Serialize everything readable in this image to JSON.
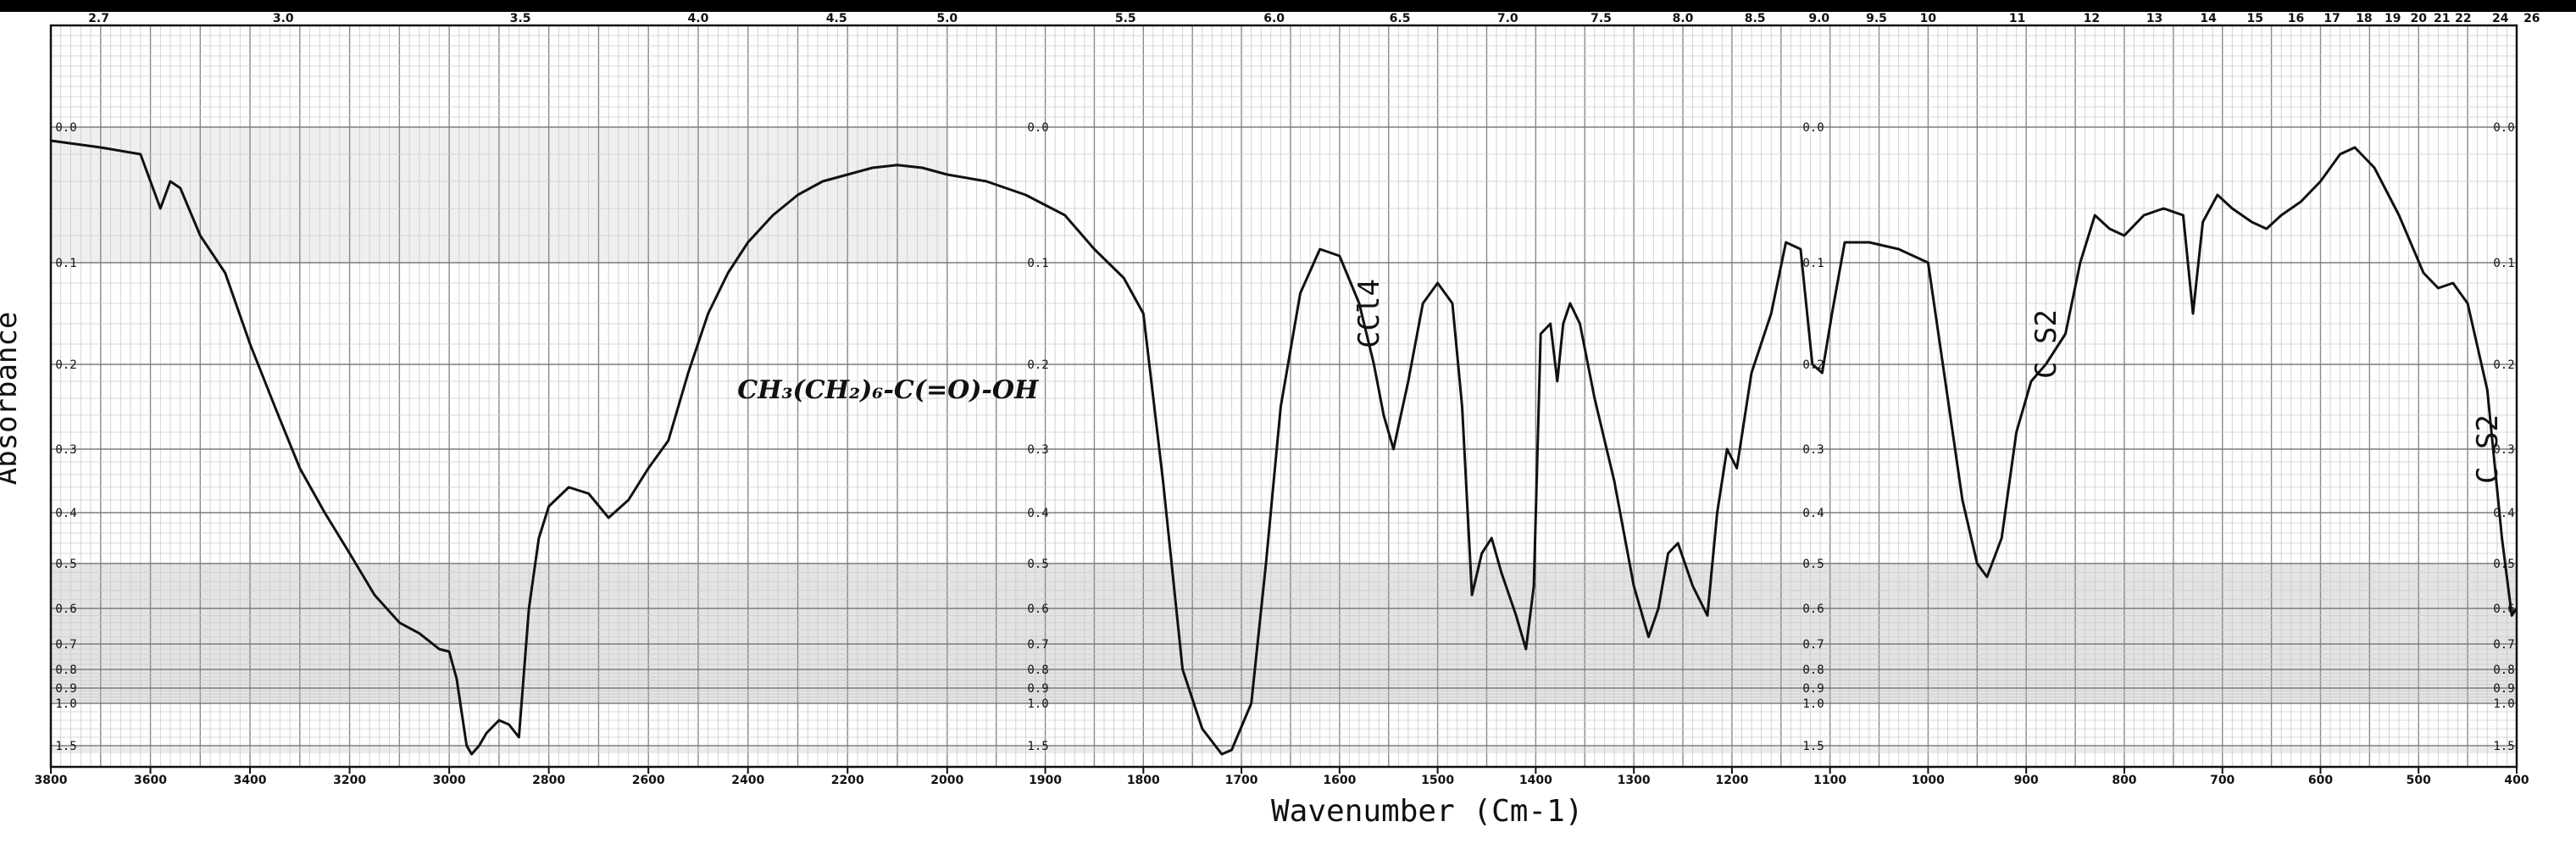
{
  "chart_data": {
    "type": "line",
    "title": "",
    "xlabel": "Wavenumber (Cm-1)",
    "ylabel": "Absorbance",
    "x_reversed": true,
    "x_scale": "piecewise: 3800-2000 and 2000-400 at different spacing",
    "xlim": [
      3800,
      400
    ],
    "y_scale": "absorbance (nonlinear grid)",
    "grid": true,
    "x_ticks": [
      3800,
      3600,
      3400,
      3200,
      3000,
      2800,
      2600,
      2400,
      2200,
      2000,
      1900,
      1800,
      1700,
      1600,
      1500,
      1400,
      1300,
      1200,
      1100,
      1000,
      900,
      800,
      700,
      600,
      500,
      400
    ],
    "x_tick_labels": [
      "3800",
      "3600",
      "3400",
      "3200",
      "3000",
      "2800",
      "2600",
      "2400",
      "2200",
      "2000",
      "1900",
      "1800",
      "1700",
      "1600",
      "1500",
      "1400",
      "1300",
      "1200",
      "1100",
      "1000",
      "900",
      "800",
      "700",
      "600",
      "500",
      "400"
    ],
    "y_tick_labels": [
      "0.0",
      "0.1",
      "0.2",
      "0.3",
      "0.4",
      "0.5",
      "0.6",
      "0.7",
      "0.8",
      "0.9",
      "1.0",
      "1.5"
    ],
    "y_tick_values": [
      0.0,
      0.1,
      0.2,
      0.3,
      0.4,
      0.5,
      0.6,
      0.7,
      0.8,
      0.9,
      1.0,
      1.5
    ],
    "top_axis_label_values": [
      "2.7",
      "3.0",
      "3.5",
      "4.0",
      "4.5",
      "5.0",
      "5.5",
      "6.0",
      "6.5",
      "7.0",
      "7.5",
      "8.0",
      "8.5",
      "9.0",
      "9.5",
      "10",
      "11",
      "12",
      "13",
      "14",
      "15",
      "16",
      "17",
      "18",
      "19",
      "20",
      "21",
      "22",
      "24",
      "26"
    ],
    "annotations": [
      {
        "text": "CH₃(CH₂)₆-C(=O)-OH",
        "kind": "handwritten structural formula",
        "x": 2000,
        "y": 0.22
      },
      {
        "text": "CCl4",
        "kind": "solvent band label",
        "x": 1560,
        "y": 0.15
      },
      {
        "text": "C S2",
        "kind": "solvent band label",
        "x": 870,
        "y": 0.18
      },
      {
        "text": "C S2",
        "kind": "solvent band label",
        "x": 420,
        "y": 0.3
      }
    ],
    "series": [
      {
        "points": [
          [
            3800,
            0.01
          ],
          [
            3700,
            0.015
          ],
          [
            3620,
            0.02
          ],
          [
            3580,
            0.06
          ],
          [
            3560,
            0.04
          ],
          [
            3540,
            0.045
          ],
          [
            3500,
            0.08
          ],
          [
            3450,
            0.11
          ],
          [
            3400,
            0.18
          ],
          [
            3350,
            0.25
          ],
          [
            3300,
            0.33
          ],
          [
            3250,
            0.4
          ],
          [
            3200,
            0.48
          ],
          [
            3150,
            0.57
          ],
          [
            3100,
            0.64
          ],
          [
            3060,
            0.67
          ],
          [
            3020,
            0.72
          ],
          [
            3000,
            0.73
          ],
          [
            2985,
            0.85
          ],
          [
            2965,
            1.5
          ],
          [
            2955,
            1.6
          ],
          [
            2940,
            1.5
          ],
          [
            2925,
            1.35
          ],
          [
            2900,
            1.2
          ],
          [
            2880,
            1.25
          ],
          [
            2860,
            1.4
          ],
          [
            2840,
            0.6
          ],
          [
            2820,
            0.45
          ],
          [
            2800,
            0.39
          ],
          [
            2760,
            0.36
          ],
          [
            2720,
            0.37
          ],
          [
            2680,
            0.41
          ],
          [
            2640,
            0.38
          ],
          [
            2600,
            0.33
          ],
          [
            2560,
            0.29
          ],
          [
            2520,
            0.21
          ],
          [
            2480,
            0.15
          ],
          [
            2440,
            0.11
          ],
          [
            2400,
            0.085
          ],
          [
            2350,
            0.065
          ],
          [
            2300,
            0.05
          ],
          [
            2250,
            0.04
          ],
          [
            2200,
            0.035
          ],
          [
            2150,
            0.03
          ],
          [
            2100,
            0.028
          ],
          [
            2050,
            0.03
          ],
          [
            2000,
            0.035
          ],
          [
            1960,
            0.04
          ],
          [
            1920,
            0.05
          ],
          [
            1880,
            0.065
          ],
          [
            1850,
            0.09
          ],
          [
            1820,
            0.115
          ],
          [
            1800,
            0.15
          ],
          [
            1780,
            0.35
          ],
          [
            1760,
            0.8
          ],
          [
            1740,
            1.3
          ],
          [
            1720,
            1.6
          ],
          [
            1710,
            1.55
          ],
          [
            1690,
            1.0
          ],
          [
            1675,
            0.5
          ],
          [
            1660,
            0.25
          ],
          [
            1640,
            0.13
          ],
          [
            1620,
            0.09
          ],
          [
            1600,
            0.095
          ],
          [
            1580,
            0.14
          ],
          [
            1565,
            0.2
          ],
          [
            1555,
            0.26
          ],
          [
            1545,
            0.3
          ],
          [
            1530,
            0.22
          ],
          [
            1515,
            0.14
          ],
          [
            1500,
            0.12
          ],
          [
            1485,
            0.14
          ],
          [
            1475,
            0.25
          ],
          [
            1465,
            0.57
          ],
          [
            1455,
            0.48
          ],
          [
            1445,
            0.45
          ],
          [
            1435,
            0.52
          ],
          [
            1420,
            0.62
          ],
          [
            1410,
            0.72
          ],
          [
            1402,
            0.55
          ],
          [
            1395,
            0.17
          ],
          [
            1385,
            0.16
          ],
          [
            1378,
            0.22
          ],
          [
            1372,
            0.16
          ],
          [
            1365,
            0.14
          ],
          [
            1355,
            0.16
          ],
          [
            1340,
            0.24
          ],
          [
            1320,
            0.35
          ],
          [
            1300,
            0.55
          ],
          [
            1285,
            0.68
          ],
          [
            1275,
            0.6
          ],
          [
            1265,
            0.48
          ],
          [
            1255,
            0.46
          ],
          [
            1240,
            0.55
          ],
          [
            1225,
            0.62
          ],
          [
            1215,
            0.4
          ],
          [
            1205,
            0.3
          ],
          [
            1195,
            0.33
          ],
          [
            1180,
            0.21
          ],
          [
            1160,
            0.15
          ],
          [
            1145,
            0.085
          ],
          [
            1130,
            0.09
          ],
          [
            1118,
            0.2
          ],
          [
            1108,
            0.21
          ],
          [
            1098,
            0.15
          ],
          [
            1085,
            0.085
          ],
          [
            1060,
            0.085
          ],
          [
            1030,
            0.09
          ],
          [
            1000,
            0.1
          ],
          [
            985,
            0.2
          ],
          [
            965,
            0.38
          ],
          [
            950,
            0.5
          ],
          [
            940,
            0.53
          ],
          [
            925,
            0.45
          ],
          [
            910,
            0.28
          ],
          [
            895,
            0.22
          ],
          [
            880,
            0.2
          ],
          [
            860,
            0.17
          ],
          [
            845,
            0.1
          ],
          [
            830,
            0.065
          ],
          [
            815,
            0.075
          ],
          [
            800,
            0.08
          ],
          [
            780,
            0.065
          ],
          [
            760,
            0.06
          ],
          [
            740,
            0.065
          ],
          [
            730,
            0.15
          ],
          [
            720,
            0.07
          ],
          [
            705,
            0.05
          ],
          [
            690,
            0.06
          ],
          [
            670,
            0.07
          ],
          [
            655,
            0.075
          ],
          [
            640,
            0.065
          ],
          [
            620,
            0.055
          ],
          [
            600,
            0.04
          ],
          [
            580,
            0.02
          ],
          [
            565,
            0.015
          ],
          [
            545,
            0.03
          ],
          [
            520,
            0.065
          ],
          [
            495,
            0.11
          ],
          [
            480,
            0.125
          ],
          [
            465,
            0.12
          ],
          [
            450,
            0.14
          ],
          [
            430,
            0.23
          ],
          [
            415,
            0.45
          ],
          [
            405,
            0.62
          ],
          [
            400,
            0.6
          ]
        ]
      }
    ]
  }
}
